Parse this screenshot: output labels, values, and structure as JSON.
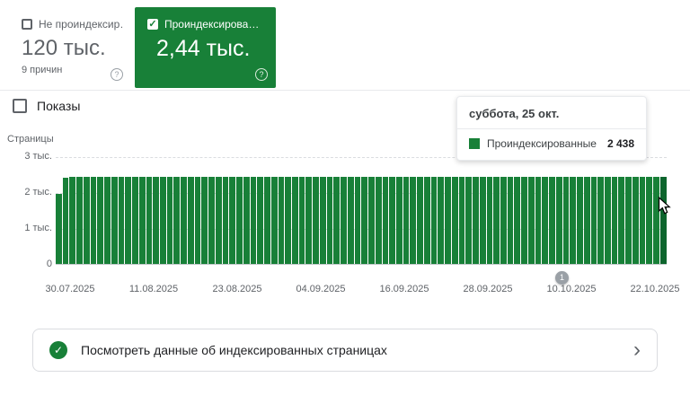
{
  "accent": {
    "green": "#188038",
    "green_dark": "#0d652d",
    "gray": "#5f6368"
  },
  "cards": {
    "not_indexed": {
      "label": "Не проиндексир…",
      "value": "120 тыс.",
      "sub": "9 причин",
      "help": "?"
    },
    "indexed": {
      "label": "Проиндексирова…",
      "value": "2,44 тыс.",
      "check": "✓",
      "help": "?"
    }
  },
  "impressions": {
    "label": "Показы"
  },
  "chart_data": {
    "type": "bar",
    "title": "",
    "ylabel": "Страницы",
    "ylim": [
      0,
      3000
    ],
    "yticks": [
      "3 тыс.",
      "2 тыс.",
      "1 тыс.",
      "0"
    ],
    "x_labels": [
      "30.07.2025",
      "11.08.2025",
      "23.08.2025",
      "04.09.2025",
      "16.09.2025",
      "28.09.2025",
      "10.10.2025",
      "22.10.2025"
    ],
    "legend_position": "tooltip",
    "grid": true,
    "series": [
      {
        "name": "Проиндексированные",
        "color": "#188038"
      }
    ],
    "values": [
      1980,
      2432,
      2446,
      2440,
      2451,
      2444,
      2453,
      2441,
      2448,
      2456,
      2447,
      2450,
      2443,
      2452,
      2446,
      2450,
      2455,
      2448,
      2452,
      2445,
      2450,
      2458,
      2452,
      2447,
      2450,
      2455,
      2448,
      2452,
      2446,
      2450,
      2444,
      2448,
      2452,
      2456,
      2450,
      2445,
      2448,
      2441,
      2446,
      2450,
      2452,
      2447,
      2443,
      2448,
      2452,
      2455,
      2450,
      2446,
      2450,
      2452,
      2448,
      2444,
      2450,
      2446,
      2452,
      2448,
      2455,
      2450,
      2447,
      2452,
      2448,
      2450,
      2446,
      2452,
      2448,
      2444,
      2450,
      2455,
      2448,
      2452,
      2446,
      2450,
      2448,
      2452,
      2447,
      2450,
      2445,
      2448,
      2452,
      2450,
      2446,
      2448,
      2452,
      2450,
      2446,
      2452,
      2444,
      2438
    ]
  },
  "tooltip": {
    "title": "суббота, 25 окт.",
    "series": "Проиндексированные",
    "value": "2 438"
  },
  "marker": {
    "label": "1"
  },
  "banner": {
    "text": "Посмотреть данные об индексированных страницах",
    "check": "✓",
    "chevron": "›"
  }
}
